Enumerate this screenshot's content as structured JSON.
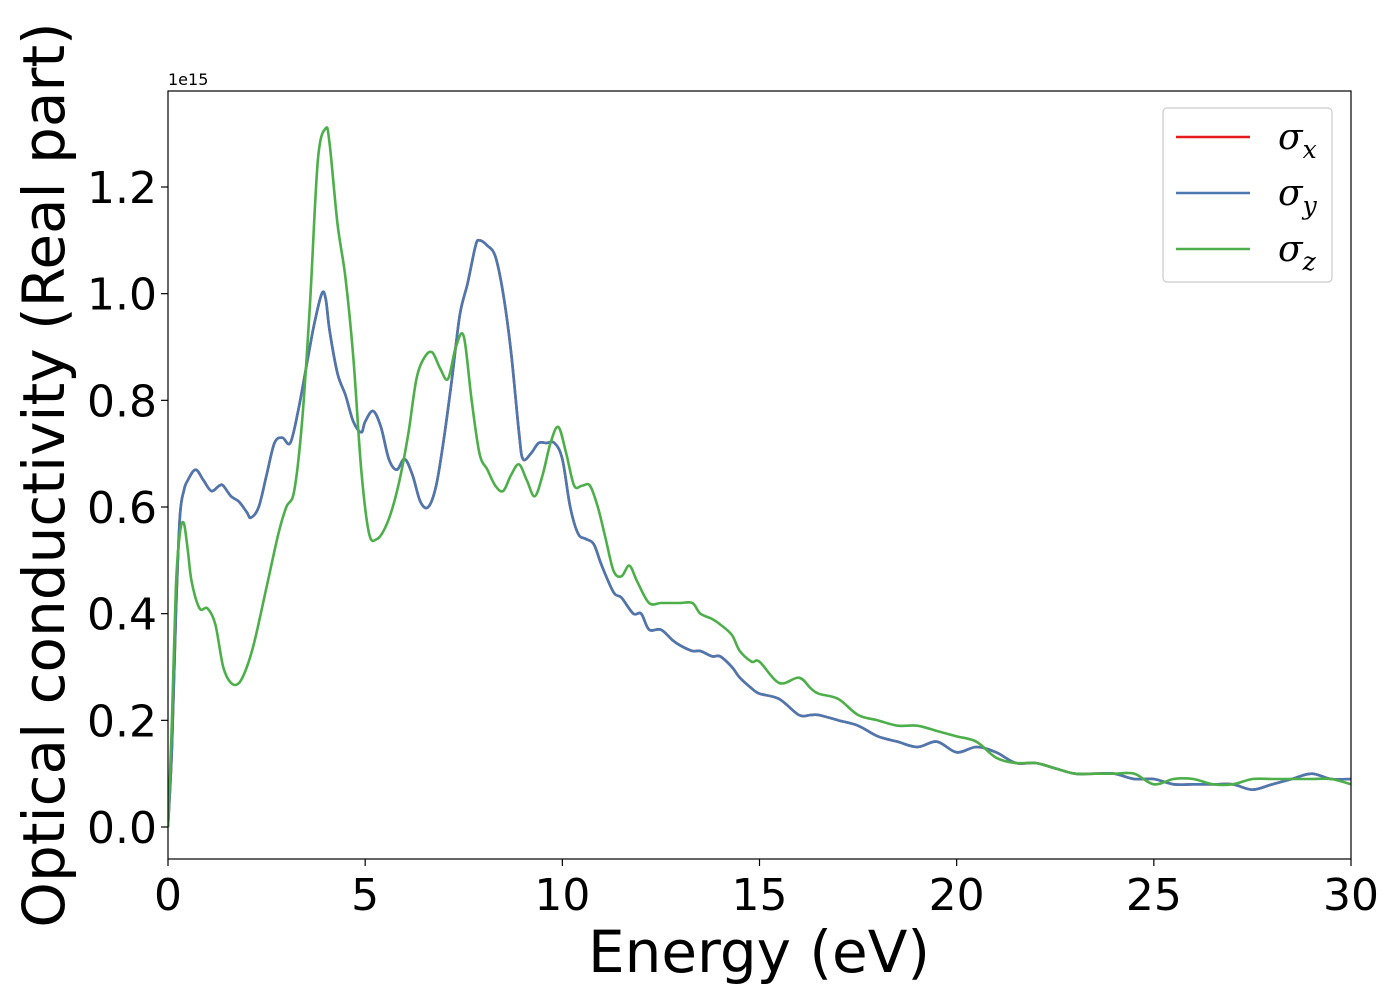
{
  "chart_data": {
    "type": "line",
    "title": "",
    "xlabel": "Energy (eV)",
    "ylabel": "Optical conductivity (Real part)",
    "y_offset_text": "1e15",
    "y_multiplier": 1000000000000000.0,
    "xlim": [
      0,
      30
    ],
    "ylim": [
      -0.06,
      1.38
    ],
    "xticks": [
      0,
      5,
      10,
      15,
      20,
      25,
      30
    ],
    "xtick_labels": [
      "0",
      "5",
      "10",
      "15",
      "20",
      "25",
      "30"
    ],
    "yticks": [
      0.0,
      0.2,
      0.4,
      0.6,
      0.8,
      1.0,
      1.2
    ],
    "ytick_labels": [
      "0.0",
      "0.2",
      "0.4",
      "0.6",
      "0.8",
      "1.0",
      "1.2"
    ],
    "grid": false,
    "legend_position": "top-right",
    "series": [
      {
        "name": "σ",
        "subscript": "x",
        "color": "#e41a1c",
        "x": [
          0,
          0.1,
          0.2,
          0.3,
          0.4,
          0.5,
          0.7,
          0.9,
          1.1,
          1.3,
          1.4,
          1.6,
          1.8,
          2.0,
          2.1,
          2.3,
          2.5,
          2.7,
          2.9,
          3.1,
          3.3,
          3.5,
          3.7,
          3.9,
          4.0,
          4.1,
          4.3,
          4.5,
          4.7,
          4.9,
          5.0,
          5.2,
          5.4,
          5.6,
          5.8,
          6.0,
          6.2,
          6.4,
          6.6,
          6.8,
          7.0,
          7.2,
          7.4,
          7.6,
          7.8,
          7.9,
          8.1,
          8.3,
          8.5,
          8.7,
          8.9,
          9.0,
          9.2,
          9.4,
          9.6,
          9.8,
          10.0,
          10.2,
          10.4,
          10.6,
          10.8,
          11.0,
          11.3,
          11.5,
          11.8,
          12.0,
          12.2,
          12.5,
          12.8,
          13.0,
          13.3,
          13.5,
          13.8,
          14.0,
          14.3,
          14.5,
          14.8,
          15.0,
          15.5,
          16.0,
          16.3,
          16.5,
          17.0,
          17.5,
          18.0,
          18.5,
          19.0,
          19.5,
          20.0,
          20.5,
          21.0,
          21.5,
          22.0,
          22.5,
          23.0,
          23.5,
          24.0,
          24.5,
          25.0,
          25.5,
          26.0,
          26.5,
          27.0,
          27.5,
          28.0,
          28.5,
          29.0,
          29.5,
          30.0
        ],
        "values": [
          0.0,
          0.15,
          0.4,
          0.58,
          0.63,
          0.65,
          0.67,
          0.65,
          0.63,
          0.64,
          0.64,
          0.62,
          0.61,
          0.59,
          0.58,
          0.6,
          0.66,
          0.72,
          0.73,
          0.72,
          0.78,
          0.86,
          0.94,
          1.0,
          0.99,
          0.93,
          0.85,
          0.81,
          0.76,
          0.74,
          0.76,
          0.78,
          0.75,
          0.69,
          0.67,
          0.69,
          0.66,
          0.61,
          0.6,
          0.64,
          0.73,
          0.84,
          0.96,
          1.02,
          1.09,
          1.1,
          1.09,
          1.07,
          1.0,
          0.89,
          0.74,
          0.69,
          0.7,
          0.72,
          0.72,
          0.72,
          0.69,
          0.6,
          0.55,
          0.54,
          0.53,
          0.49,
          0.44,
          0.43,
          0.4,
          0.4,
          0.37,
          0.37,
          0.35,
          0.34,
          0.33,
          0.33,
          0.32,
          0.32,
          0.3,
          0.28,
          0.26,
          0.25,
          0.24,
          0.21,
          0.21,
          0.21,
          0.2,
          0.19,
          0.17,
          0.16,
          0.15,
          0.16,
          0.14,
          0.15,
          0.14,
          0.12,
          0.12,
          0.11,
          0.1,
          0.1,
          0.1,
          0.09,
          0.09,
          0.08,
          0.08,
          0.08,
          0.08,
          0.07,
          0.08,
          0.09,
          0.1,
          0.09,
          0.09
        ]
      },
      {
        "name": "σ",
        "subscript": "y",
        "color": "#4a78b0",
        "x": [
          0,
          0.1,
          0.2,
          0.3,
          0.4,
          0.5,
          0.7,
          0.9,
          1.1,
          1.3,
          1.4,
          1.6,
          1.8,
          2.0,
          2.1,
          2.3,
          2.5,
          2.7,
          2.9,
          3.1,
          3.3,
          3.5,
          3.7,
          3.9,
          4.0,
          4.1,
          4.3,
          4.5,
          4.7,
          4.9,
          5.0,
          5.2,
          5.4,
          5.6,
          5.8,
          6.0,
          6.2,
          6.4,
          6.6,
          6.8,
          7.0,
          7.2,
          7.4,
          7.6,
          7.8,
          7.9,
          8.1,
          8.3,
          8.5,
          8.7,
          8.9,
          9.0,
          9.2,
          9.4,
          9.6,
          9.8,
          10.0,
          10.2,
          10.4,
          10.6,
          10.8,
          11.0,
          11.3,
          11.5,
          11.8,
          12.0,
          12.2,
          12.5,
          12.8,
          13.0,
          13.3,
          13.5,
          13.8,
          14.0,
          14.3,
          14.5,
          14.8,
          15.0,
          15.5,
          16.0,
          16.3,
          16.5,
          17.0,
          17.5,
          18.0,
          18.5,
          19.0,
          19.5,
          20.0,
          20.5,
          21.0,
          21.5,
          22.0,
          22.5,
          23.0,
          23.5,
          24.0,
          24.5,
          25.0,
          25.5,
          26.0,
          26.5,
          27.0,
          27.5,
          28.0,
          28.5,
          29.0,
          29.5,
          30.0
        ],
        "values": [
          0.0,
          0.15,
          0.4,
          0.58,
          0.63,
          0.65,
          0.67,
          0.65,
          0.63,
          0.64,
          0.64,
          0.62,
          0.61,
          0.59,
          0.58,
          0.6,
          0.66,
          0.72,
          0.73,
          0.72,
          0.78,
          0.86,
          0.94,
          1.0,
          0.99,
          0.93,
          0.85,
          0.81,
          0.76,
          0.74,
          0.76,
          0.78,
          0.75,
          0.69,
          0.67,
          0.69,
          0.66,
          0.61,
          0.6,
          0.64,
          0.73,
          0.84,
          0.96,
          1.02,
          1.09,
          1.1,
          1.09,
          1.07,
          1.0,
          0.89,
          0.74,
          0.69,
          0.7,
          0.72,
          0.72,
          0.72,
          0.69,
          0.6,
          0.55,
          0.54,
          0.53,
          0.49,
          0.44,
          0.43,
          0.4,
          0.4,
          0.37,
          0.37,
          0.35,
          0.34,
          0.33,
          0.33,
          0.32,
          0.32,
          0.3,
          0.28,
          0.26,
          0.25,
          0.24,
          0.21,
          0.21,
          0.21,
          0.2,
          0.19,
          0.17,
          0.16,
          0.15,
          0.16,
          0.14,
          0.15,
          0.14,
          0.12,
          0.12,
          0.11,
          0.1,
          0.1,
          0.1,
          0.09,
          0.09,
          0.08,
          0.08,
          0.08,
          0.08,
          0.07,
          0.08,
          0.09,
          0.1,
          0.09,
          0.09
        ]
      },
      {
        "name": "σ",
        "subscript": "z",
        "color": "#4daf4a",
        "x": [
          0,
          0.1,
          0.2,
          0.3,
          0.4,
          0.5,
          0.6,
          0.8,
          1.0,
          1.2,
          1.4,
          1.6,
          1.8,
          2.0,
          2.2,
          2.5,
          2.8,
          3.0,
          3.2,
          3.4,
          3.6,
          3.8,
          4.0,
          4.1,
          4.3,
          4.5,
          4.7,
          4.9,
          5.1,
          5.3,
          5.5,
          5.7,
          5.9,
          6.1,
          6.3,
          6.5,
          6.7,
          6.9,
          7.1,
          7.3,
          7.5,
          7.7,
          7.9,
          8.1,
          8.3,
          8.5,
          8.7,
          8.9,
          9.1,
          9.3,
          9.5,
          9.7,
          9.9,
          10.1,
          10.3,
          10.5,
          10.7,
          10.9,
          11.1,
          11.3,
          11.5,
          11.7,
          11.9,
          12.2,
          12.5,
          12.8,
          13.0,
          13.3,
          13.5,
          13.8,
          14.0,
          14.3,
          14.5,
          14.8,
          15.0,
          15.5,
          16.0,
          16.3,
          16.5,
          17.0,
          17.5,
          18.0,
          18.5,
          19.0,
          19.5,
          20.0,
          20.5,
          21.0,
          21.5,
          22.0,
          22.5,
          23.0,
          23.5,
          24.0,
          24.5,
          25.0,
          25.5,
          26.0,
          26.5,
          27.0,
          27.5,
          28.0,
          28.5,
          29.0,
          29.5,
          30.0
        ],
        "values": [
          0.0,
          0.2,
          0.45,
          0.55,
          0.57,
          0.52,
          0.46,
          0.41,
          0.41,
          0.38,
          0.3,
          0.27,
          0.27,
          0.3,
          0.35,
          0.45,
          0.55,
          0.6,
          0.63,
          0.76,
          0.98,
          1.25,
          1.31,
          1.28,
          1.13,
          1.03,
          0.88,
          0.67,
          0.55,
          0.54,
          0.56,
          0.6,
          0.66,
          0.74,
          0.84,
          0.88,
          0.89,
          0.86,
          0.84,
          0.9,
          0.92,
          0.8,
          0.7,
          0.67,
          0.64,
          0.63,
          0.66,
          0.68,
          0.65,
          0.62,
          0.66,
          0.72,
          0.75,
          0.7,
          0.64,
          0.64,
          0.64,
          0.6,
          0.54,
          0.48,
          0.47,
          0.49,
          0.46,
          0.42,
          0.42,
          0.42,
          0.42,
          0.42,
          0.4,
          0.39,
          0.38,
          0.36,
          0.33,
          0.31,
          0.31,
          0.27,
          0.28,
          0.26,
          0.25,
          0.24,
          0.21,
          0.2,
          0.19,
          0.19,
          0.18,
          0.17,
          0.16,
          0.13,
          0.12,
          0.12,
          0.11,
          0.1,
          0.1,
          0.1,
          0.1,
          0.08,
          0.09,
          0.09,
          0.08,
          0.08,
          0.09,
          0.09,
          0.09,
          0.09,
          0.09,
          0.08
        ]
      }
    ]
  }
}
